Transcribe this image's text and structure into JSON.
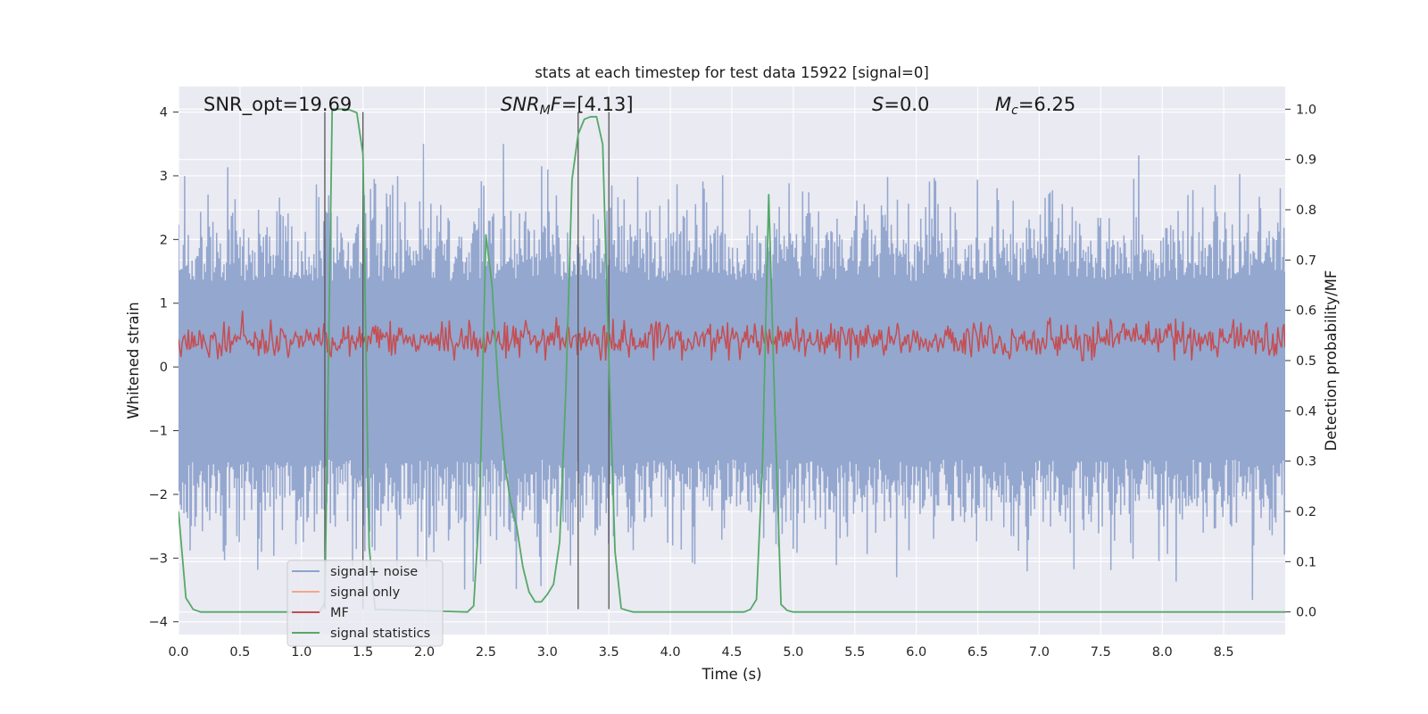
{
  "chart_data": {
    "type": "line",
    "title": "stats at each timestep for test data 15922 [signal=0]",
    "xlabel": "Time (s)",
    "ylabel": "Whitened strain",
    "y2label": "Detection probability/MF",
    "xlim": [
      0.0,
      9.0
    ],
    "ylim": [
      -4.2,
      4.4
    ],
    "y2lim": [
      -0.045,
      1.045
    ],
    "xticks": [
      0.0,
      0.5,
      1.0,
      1.5,
      2.0,
      2.5,
      3.0,
      3.5,
      4.0,
      4.5,
      5.0,
      5.5,
      6.0,
      6.5,
      7.0,
      7.5,
      8.0,
      8.5
    ],
    "xtick_labels": [
      "0.0",
      "0.5",
      "1.0",
      "1.5",
      "2.0",
      "2.5",
      "3.0",
      "3.5",
      "4.0",
      "4.5",
      "5.0",
      "5.5",
      "6.0",
      "6.5",
      "7.0",
      "7.5",
      "8.0",
      "8.5"
    ],
    "yticks": [
      4,
      3,
      2,
      1,
      0,
      -1,
      -2,
      -3,
      -4
    ],
    "ytick_labels": [
      "4",
      "3",
      "2",
      "1",
      "0",
      "−1",
      "−2",
      "−3",
      "−4"
    ],
    "y2ticks": [
      1.0,
      0.9,
      0.8,
      0.7,
      0.6,
      0.5,
      0.4,
      0.3,
      0.2,
      0.1,
      0.0
    ],
    "y2tick_labels": [
      "1.0",
      "0.9",
      "0.8",
      "0.7",
      "0.6",
      "0.5",
      "0.4",
      "0.3",
      "0.2",
      "0.1",
      "0.0"
    ],
    "grid": true,
    "legend_position": "lower-left",
    "annotations": [
      {
        "name": "snr-opt",
        "text": "SNR_opt=19.69",
        "x": 0.2
      },
      {
        "name": "snr-mf",
        "text": "SNRₘF=[4.13]",
        "x": 2.6
      },
      {
        "name": "s-value",
        "text": "S=0.0",
        "x": 5.6
      },
      {
        "name": "mc-value",
        "text": "Mc=6.25",
        "x": 6.6
      }
    ],
    "vertical_lines": [
      1.19,
      1.5,
      3.25,
      3.5
    ],
    "noise": {
      "name": "signal+ noise",
      "color": "#8fa3cc",
      "samples": 900,
      "center": -0.05,
      "spread": 0.9,
      "max_upper": 3.5,
      "min_lower": -3.85,
      "seed": 15922
    },
    "mf": {
      "name": "MF",
      "color": "#c44e52",
      "samples": 900,
      "axis": "y2",
      "center": 0.54,
      "low": 0.5,
      "high": 0.6,
      "max": 0.605,
      "seed": 4321
    },
    "series": [
      {
        "name": "signal statistics",
        "color": "#55a868",
        "axis": "y2",
        "x": [
          0.0,
          0.06,
          0.12,
          0.18,
          1.15,
          1.19,
          1.25,
          1.3,
          1.35,
          1.4,
          1.45,
          1.5,
          1.52,
          1.55,
          1.6,
          2.35,
          2.4,
          2.45,
          2.5,
          2.55,
          2.6,
          2.65,
          2.7,
          2.75,
          2.8,
          2.85,
          2.9,
          2.95,
          3.0,
          3.05,
          3.1,
          3.15,
          3.2,
          3.25,
          3.3,
          3.35,
          3.4,
          3.45,
          3.5,
          3.55,
          3.6,
          3.65,
          3.7,
          4.6,
          4.65,
          4.7,
          4.75,
          4.8,
          4.85,
          4.9,
          4.95,
          5.0,
          9.0
        ],
        "values": [
          0.2,
          0.028,
          0.005,
          0.0,
          0.0,
          0.02,
          1.0,
          1.0,
          1.0,
          0.998,
          0.993,
          0.91,
          0.6,
          0.13,
          0.005,
          0.0,
          0.012,
          0.22,
          0.75,
          0.65,
          0.45,
          0.3,
          0.22,
          0.17,
          0.09,
          0.04,
          0.02,
          0.02,
          0.035,
          0.055,
          0.14,
          0.44,
          0.86,
          0.95,
          0.98,
          0.985,
          0.985,
          0.93,
          0.5,
          0.12,
          0.007,
          0.003,
          0.0,
          0.0,
          0.005,
          0.025,
          0.3,
          0.83,
          0.4,
          0.015,
          0.003,
          0.0,
          0.0
        ]
      },
      {
        "name": "signal only",
        "color": "#dd8452",
        "values": []
      }
    ],
    "legend": [
      "signal+ noise",
      "signal only",
      "MF",
      "signal statistics"
    ]
  }
}
